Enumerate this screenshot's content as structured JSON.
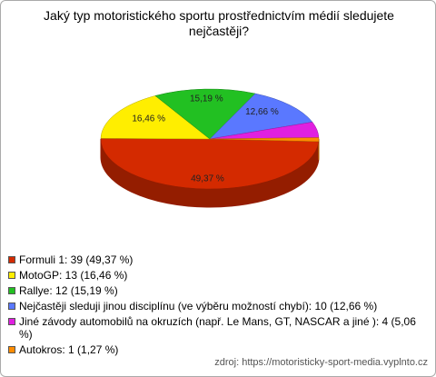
{
  "chart_data": {
    "type": "pie",
    "title": "Jaký typ motoristického sportu prostřednictvím médií sledujete nejčastěji?",
    "categories": [
      "Formuli 1: 39 (49,37 %)",
      "MotoGP: 13 (16,46 %)",
      "Rallye: 12 (15,19 %)",
      "Nejčastěji sleduji jinou disciplínu (ve výběru možností chybí): 10 (12,66 %)",
      "Jiné závody automobilů na okruzích (např. Le Mans, GT, NASCAR a jiné ): 4 (5,06 %)",
      "Autokros: 1 (1,27 %)"
    ],
    "values": [
      49.37,
      16.46,
      15.19,
      12.66,
      5.06,
      1.27
    ],
    "value_labels": [
      "49,37 %",
      "16,46 %",
      "15,19 %",
      "12,66 %",
      null,
      null
    ],
    "colors": [
      "#d42a00",
      "#ffee00",
      "#22c022",
      "#5a78ff",
      "#e020e0",
      "#ff8c00"
    ],
    "source": "zdroj: https://motoristicky-sport-media.vyplnto.cz"
  }
}
